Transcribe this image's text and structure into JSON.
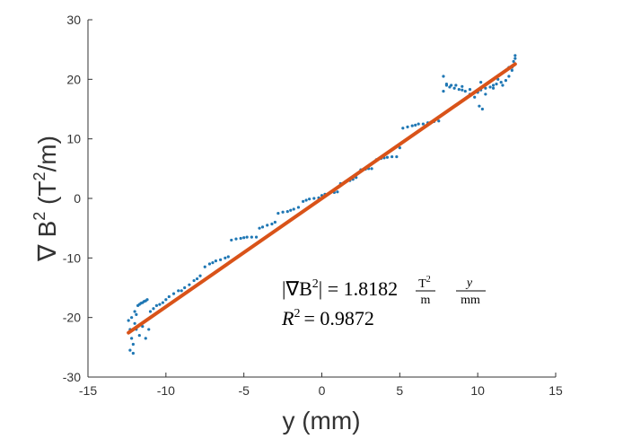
{
  "chart_data": {
    "type": "scatter",
    "xlabel": "y (mm)",
    "ylabel_parts": {
      "base": "∇ B",
      "sup": "2",
      "open": " (T",
      "unit_sup": "2",
      "close": "/m)"
    },
    "xlim": [
      -15,
      15
    ],
    "ylim": [
      -30,
      30
    ],
    "x_ticks": [
      -15,
      -10,
      -5,
      0,
      5,
      10,
      15
    ],
    "y_ticks": [
      -30,
      -20,
      -10,
      0,
      10,
      20,
      30
    ],
    "x_tick_labels": [
      "-15",
      "-10",
      "-5",
      "0",
      "5",
      "10",
      "15"
    ],
    "y_tick_labels": [
      "-30",
      "-20",
      "-10",
      "0",
      "10",
      "20",
      "30"
    ],
    "grid": false,
    "colors": {
      "data": "#1f77b4",
      "fit": "#d95319",
      "axis": "#333333"
    },
    "series": [
      {
        "kind": "scatter",
        "values_note": "measured gradient samples",
        "x": [
          -12.4,
          -12.3,
          -12.2,
          -12.1,
          -12.0,
          -11.9,
          -11.8,
          -11.7,
          -11.6,
          -11.5,
          -11.4,
          -11.3,
          -11.2,
          -11.0,
          -10.8,
          -10.6,
          -10.4,
          -10.2,
          -10.0,
          -9.8,
          -9.5,
          -9.2,
          -9.0,
          -8.8,
          -8.5,
          -8.2,
          -8.0,
          -7.8,
          -7.5,
          -7.2,
          -7.0,
          -6.8,
          -6.5,
          -6.2,
          -6.0,
          -5.8,
          -5.5,
          -5.2,
          -5.0,
          -4.8,
          -4.5,
          -4.2,
          -4.0,
          -3.8,
          -3.5,
          -3.2,
          -3.0,
          -2.8,
          -2.5,
          -2.2,
          -2.0,
          -1.8,
          -1.5,
          -1.2,
          -1.0,
          -0.8,
          -0.5,
          -0.2,
          0.0,
          0.2,
          0.5,
          0.8,
          1.0,
          1.2,
          1.5,
          1.8,
          2.0,
          2.2,
          2.5,
          2.8,
          3.0,
          3.2,
          3.5,
          3.8,
          4.0,
          4.2,
          4.5,
          4.8,
          5.0,
          5.2,
          5.5,
          5.8,
          6.0,
          6.2,
          6.5,
          6.8,
          7.0,
          7.2,
          7.5,
          7.8,
          8.0,
          8.2,
          8.5,
          8.8,
          9.0,
          9.2,
          9.5,
          9.8,
          10.0,
          10.2,
          10.5,
          10.8,
          11.0,
          11.2,
          11.5,
          11.8,
          12.0,
          12.2,
          12.4,
          -12.3,
          -12.1,
          -11.9,
          -11.7,
          -11.5,
          -12.2,
          -12.0,
          -11.8,
          -11.3,
          -11.1,
          7.8,
          8.0,
          8.3,
          8.6,
          9.0,
          9.5,
          10.0,
          10.2,
          10.5,
          11.0,
          11.3,
          11.6,
          12.0,
          12.2,
          12.4,
          12.3,
          10.1,
          10.3
        ],
        "y": [
          -20.5,
          -22.0,
          -23.5,
          -24.5,
          -21.0,
          -19.5,
          -18.0,
          -17.8,
          -17.6,
          -17.5,
          -17.3,
          -17.2,
          -17.0,
          -19.0,
          -18.5,
          -18.0,
          -17.8,
          -17.5,
          -17.0,
          -16.5,
          -16.0,
          -15.5,
          -15.5,
          -15.0,
          -14.5,
          -13.8,
          -13.5,
          -13.0,
          -11.5,
          -11.0,
          -10.8,
          -10.5,
          -10.3,
          -10.0,
          -9.8,
          -7.0,
          -6.8,
          -6.7,
          -6.6,
          -6.5,
          -6.5,
          -6.5,
          -5.0,
          -4.8,
          -4.5,
          -4.3,
          -4.0,
          -2.5,
          -2.3,
          -2.2,
          -2.0,
          -1.8,
          -1.5,
          -0.5,
          -0.3,
          -0.1,
          0.0,
          0.1,
          0.5,
          0.7,
          0.9,
          1.0,
          1.1,
          2.5,
          2.8,
          3.0,
          3.2,
          3.5,
          4.8,
          4.9,
          5.0,
          5.0,
          6.5,
          6.7,
          6.8,
          6.9,
          7.0,
          7.0,
          8.5,
          11.8,
          12.0,
          12.2,
          12.3,
          12.5,
          12.5,
          12.7,
          12.8,
          12.9,
          13.0,
          20.5,
          19.0,
          18.7,
          18.5,
          18.3,
          18.2,
          18.0,
          17.5,
          17.0,
          18.0,
          18.2,
          18.5,
          18.7,
          19.0,
          19.2,
          19.5,
          19.8,
          20.5,
          22.0,
          23.5,
          -25.5,
          -26.0,
          -22.0,
          -23.0,
          -21.5,
          -20.0,
          -19.0,
          -21.5,
          -23.5,
          -22.0,
          18.0,
          19.2,
          19.0,
          19.0,
          18.8,
          18.3,
          17.8,
          19.5,
          17.5,
          18.5,
          20.0,
          19.0,
          22.0,
          21.5,
          24.0,
          23.0,
          15.5,
          15.0
        ]
      },
      {
        "kind": "line",
        "values_note": "linear fit",
        "x": [
          -12.4,
          12.4
        ],
        "y": [
          -22.55,
          22.55
        ]
      }
    ],
    "annotation": {
      "line1": {
        "lhs": "|∇B",
        "lhs_sup": "2",
        "rhs": "| = 1.8182",
        "frac1_num": "T",
        "frac1_num_sup": "2",
        "frac1_den": "m",
        "frac2_num": "y",
        "frac2_den": "mm"
      },
      "line2": {
        "r": "R",
        "r_sup": "2",
        "eq": "= 0.9872"
      }
    }
  }
}
